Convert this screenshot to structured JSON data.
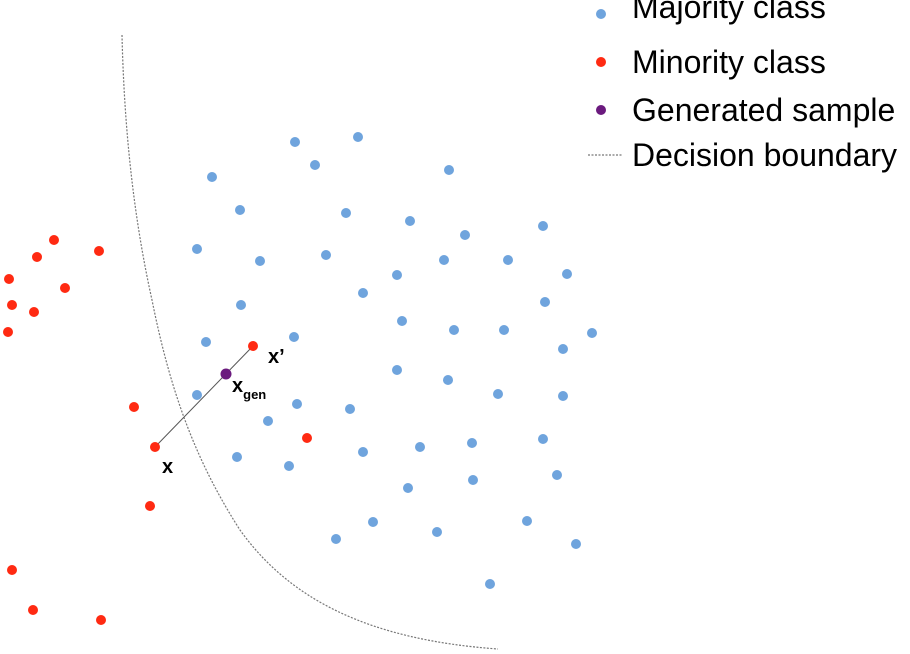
{
  "colors": {
    "majority": "#6fa4dd",
    "minority": "#ff2a12",
    "generated": "#6b1a7e",
    "boundary": "#777777",
    "connector": "#555555"
  },
  "legend": {
    "majority_label": "Majority class",
    "minority_label": "Minority class",
    "generated_label": "Generated sample",
    "boundary_label": "Decision boundary"
  },
  "labels": {
    "x": "x",
    "x_prime": "x’",
    "x_gen_main": "x",
    "x_gen_sub": "gen"
  },
  "icons": {
    "majority_marker": "blue-dot-icon",
    "minority_marker": "red-dot-icon",
    "generated_marker": "purple-dot-icon",
    "boundary_marker": "dotted-line-icon"
  }
}
